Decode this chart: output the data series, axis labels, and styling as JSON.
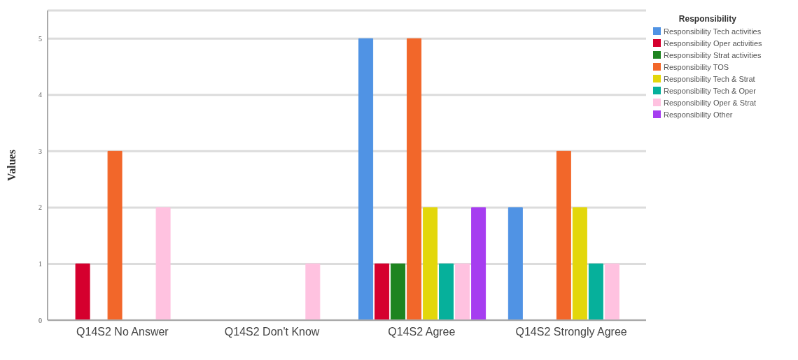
{
  "chart_data": {
    "type": "bar",
    "ylabel": "Values",
    "legend_title": "Responsibility",
    "categories": [
      "Q14S2 No Answer",
      "Q14S2 Don't Know",
      "Q14S2 Agree",
      "Q14S2 Strongly Agree"
    ],
    "series": [
      {
        "name": "Responsibility Tech activities",
        "color": "#5093e4",
        "values": [
          null,
          null,
          5,
          2
        ]
      },
      {
        "name": "Responsibility Oper activities",
        "color": "#d5002e",
        "values": [
          1,
          null,
          1,
          null
        ]
      },
      {
        "name": "Responsibility Strat activities",
        "color": "#1e8420",
        "values": [
          null,
          null,
          1,
          null
        ]
      },
      {
        "name": "Responsibility TOS",
        "color": "#f2672a",
        "values": [
          3,
          null,
          5,
          3
        ]
      },
      {
        "name": "Responsibility Tech & Strat",
        "color": "#e3d70b",
        "values": [
          null,
          null,
          2,
          2
        ]
      },
      {
        "name": "Responsibility Tech & Oper",
        "color": "#06b09b",
        "values": [
          null,
          null,
          1,
          1
        ]
      },
      {
        "name": "Responsibility Oper & Strat",
        "color": "#ffc2e0",
        "values": [
          2,
          1,
          1,
          1
        ]
      },
      {
        "name": "Responsibility Other",
        "color": "#a63df0",
        "values": [
          null,
          null,
          2,
          null
        ]
      }
    ],
    "ylim": [
      0,
      5.5
    ],
    "yticks": [
      0,
      1,
      2,
      3,
      4,
      5
    ],
    "grid": "y",
    "legend": "top right"
  }
}
